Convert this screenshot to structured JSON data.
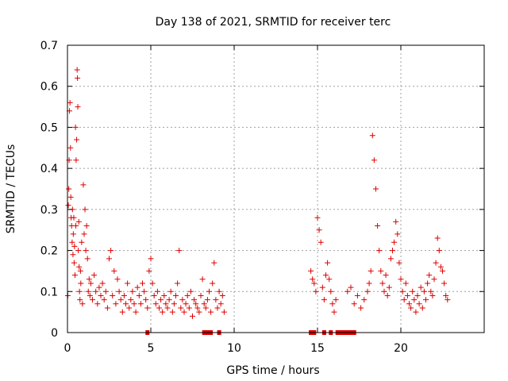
{
  "chart_data": {
    "type": "scatter",
    "title": "Day 138 of 2021, SRMTID for receiver terc",
    "xlabel": "GPS time / hours",
    "ylabel": "SRMTID / TECUs",
    "xlim": [
      0,
      25
    ],
    "ylim": [
      0,
      0.7
    ],
    "xticks": [
      0,
      5,
      10,
      15,
      20
    ],
    "yticks": [
      0,
      0.1,
      0.2,
      0.3,
      0.4,
      0.5,
      0.6,
      0.7
    ],
    "xtick_labels": [
      "0",
      "5",
      "10",
      "15",
      "20"
    ],
    "ytick_labels": [
      "0",
      "0.1",
      "0.2",
      "0.3",
      "0.4",
      "0.5",
      "0.6",
      "0.7"
    ],
    "grid": true,
    "marker": "+",
    "color": "#dd0000",
    "series": [
      {
        "name": "SRMTID",
        "x": [
          0.02,
          0.05,
          0.08,
          0.1,
          0.12,
          0.15,
          0.18,
          0.2,
          0.22,
          0.25,
          0.28,
          0.3,
          0.33,
          0.35,
          0.38,
          0.4,
          0.42,
          0.45,
          0.48,
          0.5,
          0.52,
          0.55,
          0.58,
          0.6,
          0.62,
          0.65,
          0.68,
          0.7,
          0.72,
          0.75,
          0.78,
          0.8,
          0.85,
          0.9,
          0.95,
          1.0,
          1.05,
          1.1,
          1.15,
          1.2,
          1.25,
          1.3,
          1.35,
          1.4,
          1.5,
          1.6,
          1.7,
          1.8,
          1.9,
          2.0,
          2.1,
          2.2,
          2.3,
          2.4,
          2.5,
          2.6,
          2.7,
          2.8,
          2.9,
          3.0,
          3.1,
          3.2,
          3.3,
          3.4,
          3.5,
          3.6,
          3.7,
          3.8,
          3.9,
          4.0,
          4.1,
          4.2,
          4.3,
          4.4,
          4.5,
          4.6,
          4.7,
          4.8,
          4.9,
          5.0,
          5.1,
          5.2,
          5.3,
          5.4,
          5.5,
          5.6,
          5.7,
          5.8,
          5.9,
          6.0,
          6.1,
          6.2,
          6.3,
          6.4,
          6.5,
          6.6,
          6.7,
          6.8,
          6.9,
          7.0,
          7.1,
          7.2,
          7.3,
          7.4,
          7.5,
          7.6,
          7.7,
          7.8,
          7.9,
          8.0,
          8.1,
          8.2,
          8.3,
          8.4,
          8.5,
          8.6,
          8.7,
          8.8,
          8.9,
          9.0,
          9.1,
          9.2,
          9.3,
          9.4,
          14.6,
          14.7,
          14.8,
          14.9,
          15.0,
          15.1,
          15.2,
          15.3,
          15.4,
          15.5,
          15.6,
          15.7,
          15.8,
          15.9,
          16.0,
          16.1,
          16.8,
          17.0,
          17.2,
          17.4,
          17.6,
          17.8,
          18.0,
          18.1,
          18.2,
          18.3,
          18.4,
          18.5,
          18.6,
          18.7,
          18.8,
          18.9,
          19.0,
          19.1,
          19.2,
          19.3,
          19.4,
          19.5,
          19.6,
          19.7,
          19.8,
          19.9,
          20.0,
          20.1,
          20.2,
          20.3,
          20.4,
          20.5,
          20.6,
          20.7,
          20.8,
          20.9,
          21.0,
          21.1,
          21.2,
          21.3,
          21.4,
          21.5,
          21.6,
          21.7,
          21.8,
          21.9,
          22.0,
          22.1,
          22.2,
          22.3,
          22.4,
          22.5,
          22.6,
          22.7,
          22.8
        ],
        "y": [
          0.09,
          0.31,
          0.35,
          0.42,
          0.54,
          0.56,
          0.45,
          0.33,
          0.28,
          0.26,
          0.22,
          0.3,
          0.19,
          0.24,
          0.28,
          0.17,
          0.21,
          0.14,
          0.5,
          0.26,
          0.42,
          0.47,
          0.64,
          0.62,
          0.55,
          0.2,
          0.27,
          0.16,
          0.1,
          0.08,
          0.15,
          0.12,
          0.22,
          0.07,
          0.36,
          0.24,
          0.3,
          0.2,
          0.26,
          0.18,
          0.1,
          0.13,
          0.09,
          0.12,
          0.08,
          0.14,
          0.1,
          0.07,
          0.11,
          0.09,
          0.12,
          0.08,
          0.1,
          0.06,
          0.18,
          0.2,
          0.09,
          0.15,
          0.07,
          0.13,
          0.1,
          0.08,
          0.05,
          0.09,
          0.07,
          0.12,
          0.06,
          0.08,
          0.1,
          0.07,
          0.05,
          0.11,
          0.09,
          0.07,
          0.12,
          0.1,
          0.08,
          0.06,
          0.15,
          0.18,
          0.12,
          0.09,
          0.07,
          0.1,
          0.06,
          0.08,
          0.05,
          0.09,
          0.07,
          0.06,
          0.08,
          0.1,
          0.05,
          0.07,
          0.09,
          0.12,
          0.2,
          0.06,
          0.08,
          0.05,
          0.07,
          0.09,
          0.06,
          0.1,
          0.04,
          0.08,
          0.07,
          0.06,
          0.05,
          0.09,
          0.13,
          0.07,
          0.06,
          0.08,
          0.1,
          0.05,
          0.12,
          0.17,
          0.08,
          0.06,
          0.1,
          0.07,
          0.09,
          0.05,
          0.15,
          0.13,
          0.12,
          0.1,
          0.28,
          0.25,
          0.22,
          0.11,
          0.08,
          0.14,
          0.17,
          0.13,
          0.1,
          0.07,
          0.05,
          0.08,
          0.1,
          0.11,
          0.07,
          0.09,
          0.06,
          0.08,
          0.1,
          0.12,
          0.15,
          0.48,
          0.42,
          0.35,
          0.26,
          0.2,
          0.15,
          0.12,
          0.1,
          0.14,
          0.09,
          0.11,
          0.18,
          0.2,
          0.22,
          0.27,
          0.24,
          0.17,
          0.13,
          0.1,
          0.08,
          0.12,
          0.09,
          0.07,
          0.06,
          0.1,
          0.08,
          0.05,
          0.09,
          0.07,
          0.11,
          0.06,
          0.1,
          0.08,
          0.12,
          0.14,
          0.1,
          0.09,
          0.13,
          0.17,
          0.23,
          0.2,
          0.16,
          0.15,
          0.12,
          0.09,
          0.08
        ]
      }
    ],
    "zero_markers_x": [
      4.8,
      8.2,
      8.4,
      8.6,
      9.1,
      14.6,
      14.8,
      15.4,
      15.8,
      16.2,
      16.4,
      16.6,
      16.8,
      17.0,
      17.2
    ]
  }
}
